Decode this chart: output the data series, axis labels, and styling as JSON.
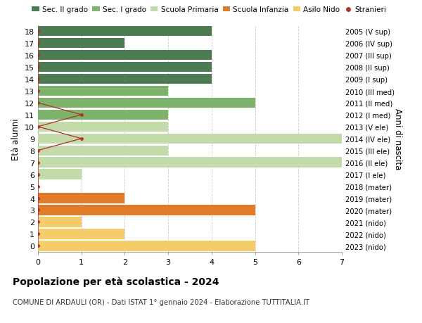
{
  "ages": [
    18,
    17,
    16,
    15,
    14,
    13,
    12,
    11,
    10,
    9,
    8,
    7,
    6,
    5,
    4,
    3,
    2,
    1,
    0
  ],
  "years": [
    "2005 (V sup)",
    "2006 (IV sup)",
    "2007 (III sup)",
    "2008 (II sup)",
    "2009 (I sup)",
    "2010 (III med)",
    "2011 (II med)",
    "2012 (I med)",
    "2013 (V ele)",
    "2014 (IV ele)",
    "2015 (III ele)",
    "2016 (II ele)",
    "2017 (I ele)",
    "2018 (mater)",
    "2019 (mater)",
    "2020 (mater)",
    "2021 (nido)",
    "2022 (nido)",
    "2023 (nido)"
  ],
  "bar_values": [
    4,
    2,
    4,
    4,
    4,
    3,
    5,
    3,
    3,
    7,
    3,
    7,
    1,
    0,
    2,
    5,
    1,
    2,
    5
  ],
  "colors": {
    "sec2": "#4d7c52",
    "sec1": "#7db36a",
    "primaria": "#c2dba8",
    "infanzia": "#e07b2a",
    "nido": "#f5cc6a",
    "stranieri": "#b03030"
  },
  "colors_map": [
    "#4d7c52",
    "#4d7c52",
    "#4d7c52",
    "#4d7c52",
    "#4d7c52",
    "#7db36a",
    "#7db36a",
    "#7db36a",
    "#c2dba8",
    "#c2dba8",
    "#c2dba8",
    "#c2dba8",
    "#c2dba8",
    "#c2dba8",
    "#e07b2a",
    "#e07b2a",
    "#f5cc6a",
    "#f5cc6a",
    "#f5cc6a"
  ],
  "stranieri_x": [
    0,
    0,
    0,
    0,
    0,
    0,
    0,
    1,
    0,
    1,
    0,
    0,
    0,
    0,
    0,
    0,
    0,
    0,
    0
  ],
  "legend_labels": [
    "Sec. II grado",
    "Sec. I grado",
    "Scuola Primaria",
    "Scuola Infanzia",
    "Asilo Nido",
    "Stranieri"
  ],
  "ylabel": "Età alunni",
  "right_label": "Anni di nascita",
  "title": "Popolazione per età scolastica - 2024",
  "subtitle": "COMUNE DI ARDAULI (OR) - Dati ISTAT 1° gennaio 2024 - Elaborazione TUTTITALIA.IT",
  "xlim": [
    0,
    7
  ],
  "ylim": [
    -0.5,
    18.5
  ],
  "xticks": [
    0,
    1,
    2,
    3,
    4,
    5,
    6,
    7
  ],
  "background_color": "#ffffff",
  "grid_color": "#cccccc"
}
